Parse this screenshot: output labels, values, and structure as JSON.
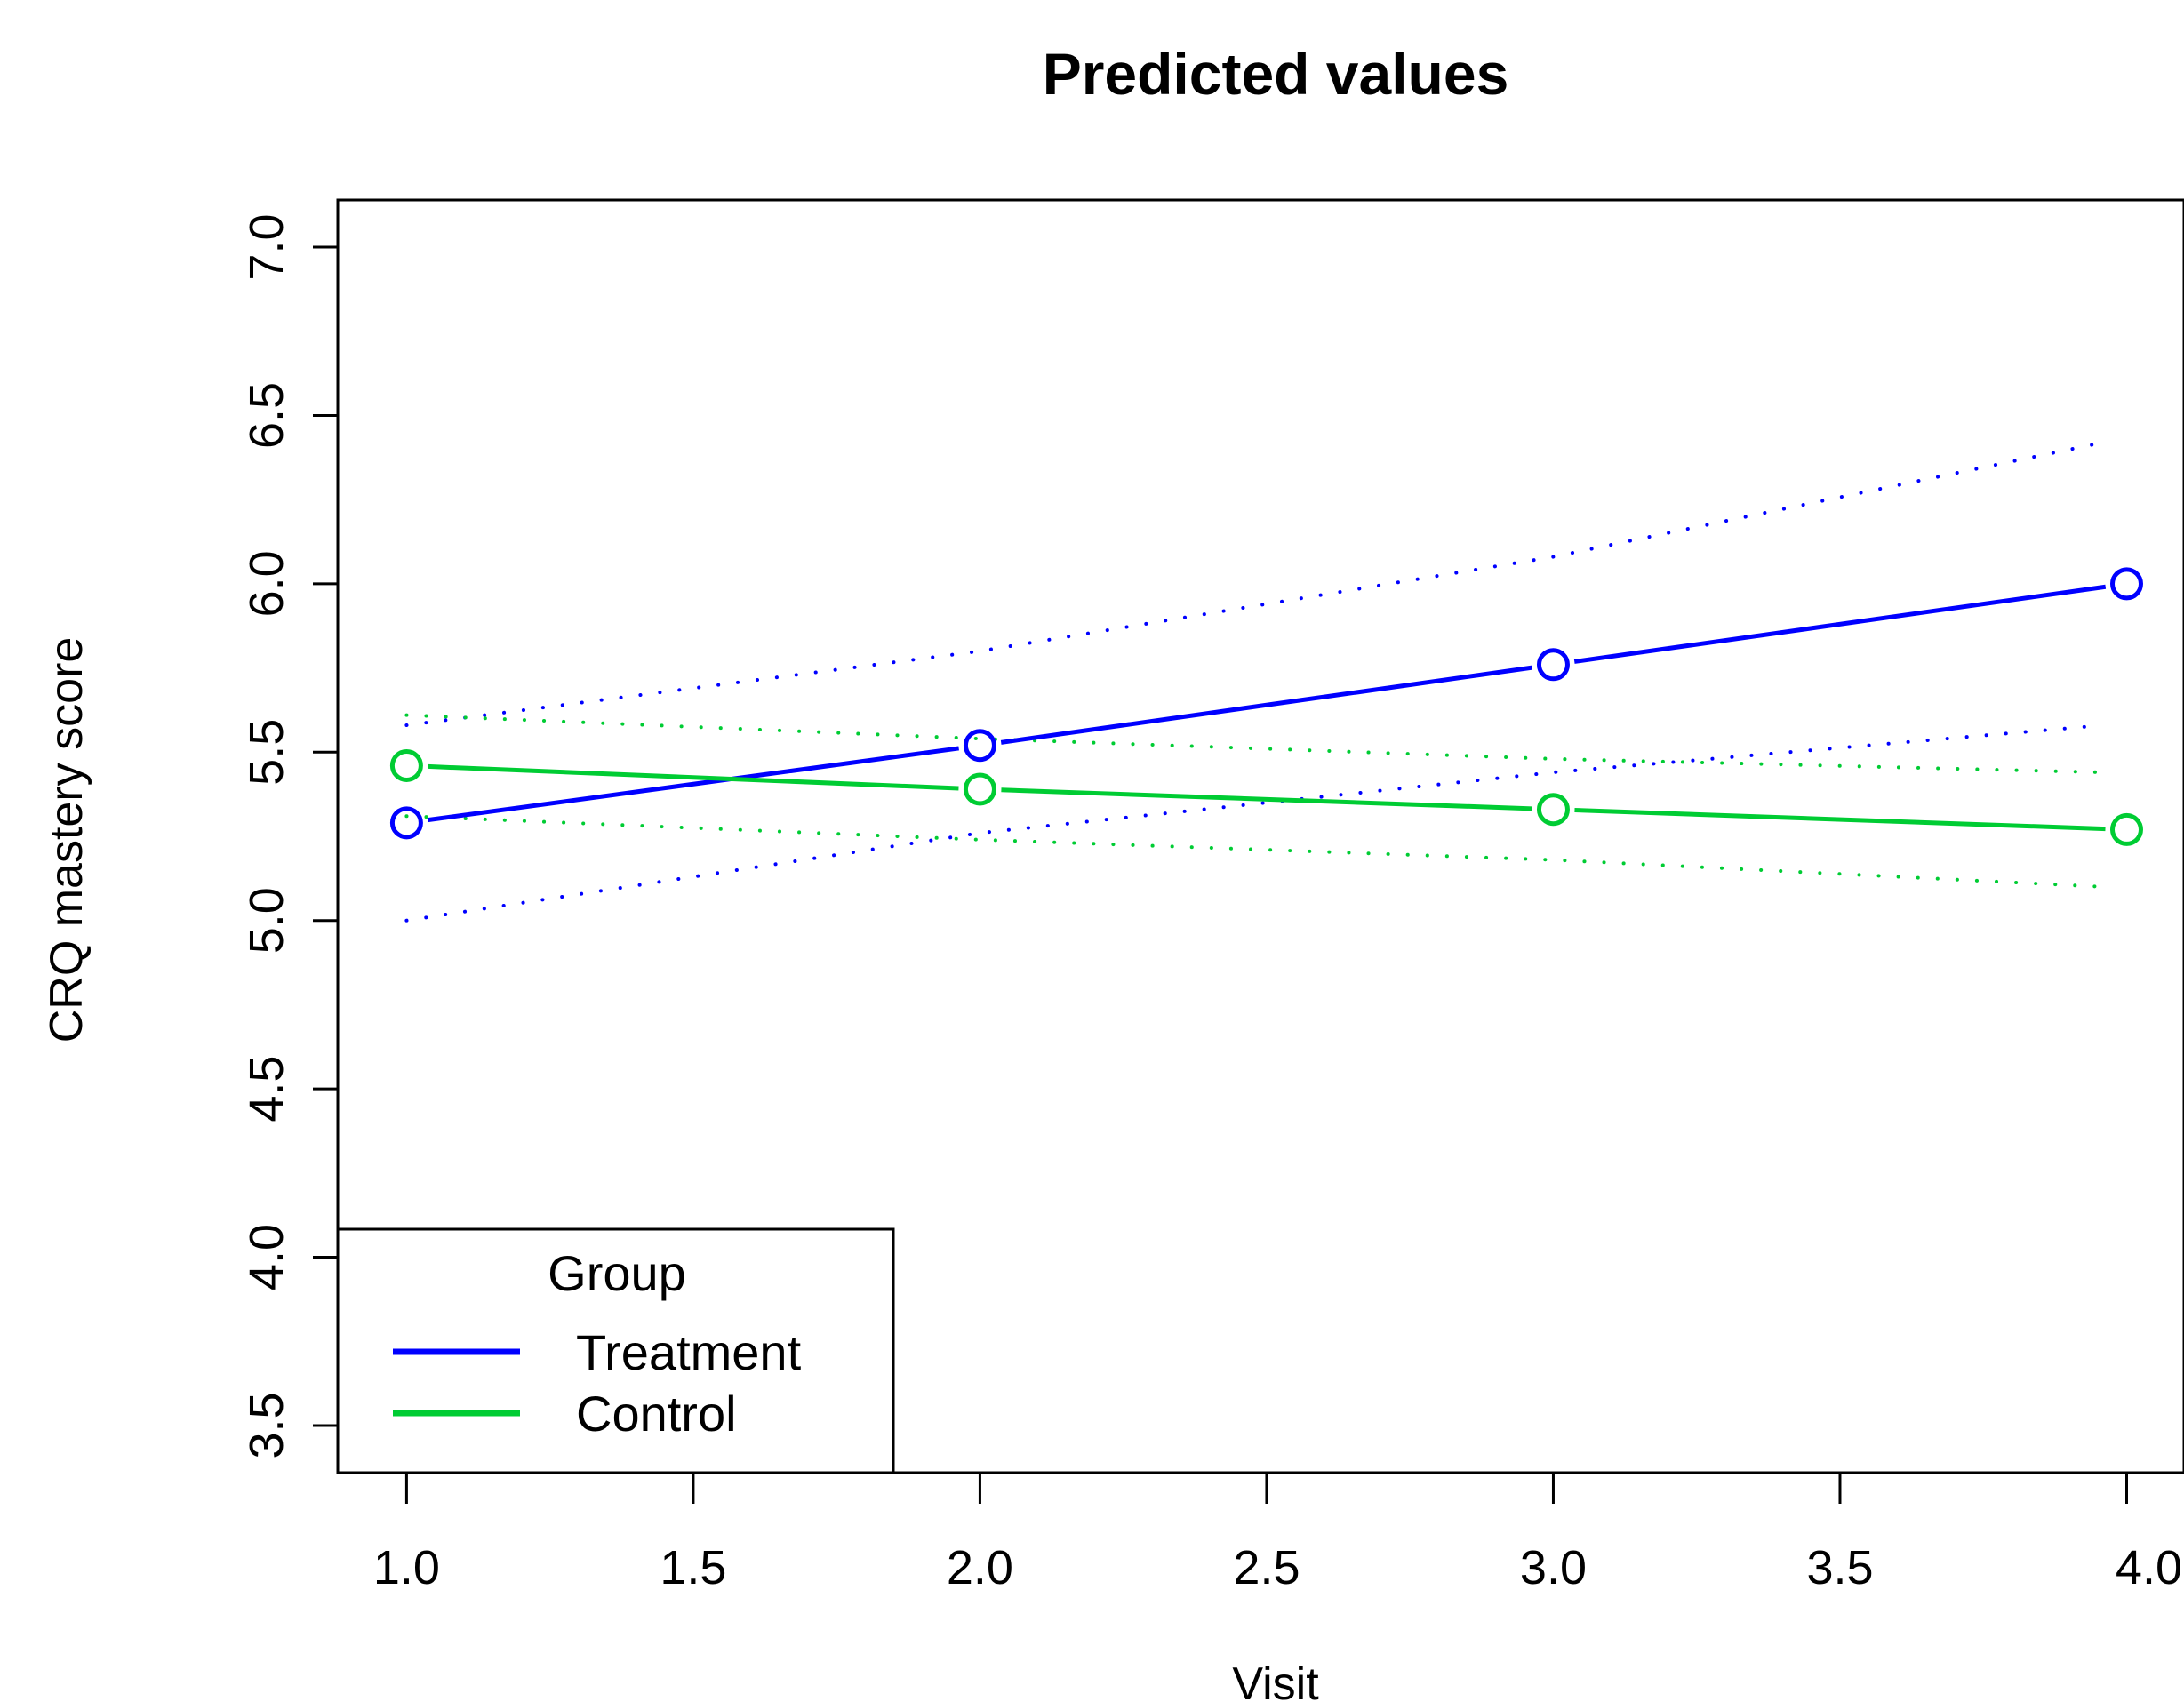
{
  "chart_data": {
    "type": "line",
    "title": "Predicted values",
    "xlabel": "Visit",
    "ylabel": "CRQ mastery score",
    "xlim": [
      0.88,
      4.1
    ],
    "ylim": [
      3.36,
      7.14
    ],
    "x_ticks": [
      "1.0",
      "1.5",
      "2.0",
      "2.5",
      "3.0",
      "3.5",
      "4.0"
    ],
    "y_ticks": [
      "3.5",
      "4.0",
      "4.5",
      "5.0",
      "5.5",
      "6.0",
      "6.5",
      "7.0"
    ],
    "x": [
      1,
      2,
      3,
      4
    ],
    "series": [
      {
        "name": "Treatment",
        "color": "#0000ff",
        "values": [
          5.29,
          5.52,
          5.76,
          6.0
        ],
        "upper": [
          5.58,
          5.8,
          6.08,
          6.42
        ],
        "lower": [
          5.0,
          5.26,
          5.44,
          5.58
        ]
      },
      {
        "name": "Control",
        "color": "#00cc33",
        "values": [
          5.46,
          5.39,
          5.33,
          5.27
        ],
        "upper": [
          5.61,
          5.54,
          5.48,
          5.44
        ],
        "lower": [
          5.31,
          5.24,
          5.18,
          5.1
        ]
      }
    ],
    "legend": {
      "title": "Group",
      "position": "bottom-left",
      "entries": [
        "Treatment",
        "Control"
      ]
    },
    "grid": false
  }
}
